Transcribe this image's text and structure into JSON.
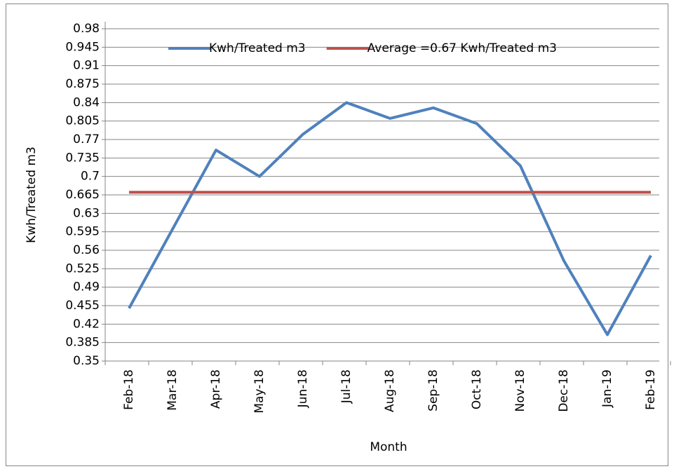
{
  "chart_data": {
    "type": "line",
    "x_label": "Month",
    "y_label": "Kwh/Treated m3",
    "categories": [
      "Feb-18",
      "Mar-18",
      "Apr-18",
      "May-18",
      "Jun-18",
      "Jul-18",
      "Aug-18",
      "Sep-18",
      "Oct-18",
      "Nov-18",
      "Dec-18",
      "Jan-19",
      "Feb-19"
    ],
    "series": [
      {
        "name": "Kwh/Treated m3",
        "color": "#4f81bd",
        "values": [
          0.45,
          0.6,
          0.75,
          0.7,
          0.78,
          0.84,
          0.81,
          0.83,
          0.8,
          0.72,
          0.54,
          0.4,
          0.55
        ]
      },
      {
        "name": "Average =0.67 Kwh/Treated m3",
        "color": "#c0504d",
        "values": [
          0.67,
          0.67,
          0.67,
          0.67,
          0.67,
          0.67,
          0.67,
          0.67,
          0.67,
          0.67,
          0.67,
          0.67,
          0.67
        ]
      }
    ],
    "ylim": [
      0.35,
      0.98
    ],
    "yticks": [
      0.35,
      0.385,
      0.42,
      0.455,
      0.49,
      0.525,
      0.56,
      0.595,
      0.63,
      0.665,
      0.7,
      0.735,
      0.77,
      0.805,
      0.84,
      0.875,
      0.91,
      0.945,
      0.98
    ],
    "grid": true,
    "legend": "top"
  }
}
